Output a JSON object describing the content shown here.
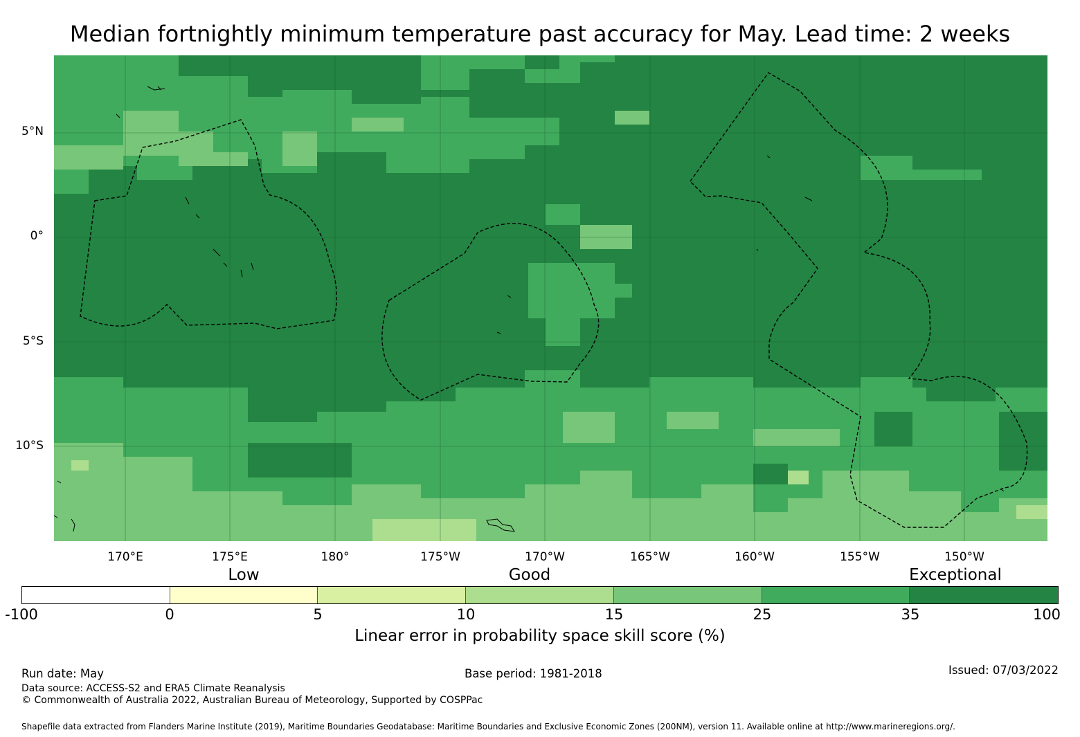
{
  "title": "Median fortnightly minimum temperature past accuracy for May. Lead time: 2 weeks",
  "map": {
    "lat_labels": [
      "5°N",
      "0°",
      "5°S",
      "10°S"
    ],
    "lon_labels": [
      "170°E",
      "175°E",
      "180°",
      "175°W",
      "170°W",
      "165°W",
      "160°W",
      "155°W",
      "150°W"
    ],
    "extent": {
      "lon_west": 166.6,
      "lon_east": 213.8,
      "lat_south": -14.4,
      "lat_north": 8.7
    }
  },
  "colorbar": {
    "category_labels": [
      "Low",
      "Good",
      "Exceptional"
    ],
    "ticks": [
      "-100",
      "0",
      "5",
      "10",
      "15",
      "25",
      "35",
      "100"
    ],
    "colors": [
      "#ffffff",
      "#ffffcc",
      "#d9f0a3",
      "#addd8e",
      "#78c679",
      "#41ab5d",
      "#238443"
    ],
    "label": "Linear error in probability space skill score (%)"
  },
  "footer": {
    "run_date": "Run date: May",
    "base_period": "Base period: 1981-2018",
    "issued": "Issued: 07/03/2022",
    "data_source": "Data source: ACCESS-S2 and ERA5 Climate Reanalysis",
    "copyright": "© Commonwealth of Australia 2022, Australian Bureau of Meteorology, Supported by COSPPac",
    "shapefile_note": "Shapefile data extracted from Flanders Marine Institute (2019), Maritime Boundaries Geodatabase: Maritime Boundaries and Exclusive Economic Zones (200NM), version 11. Available online at http://www.marineregions.org/."
  }
}
